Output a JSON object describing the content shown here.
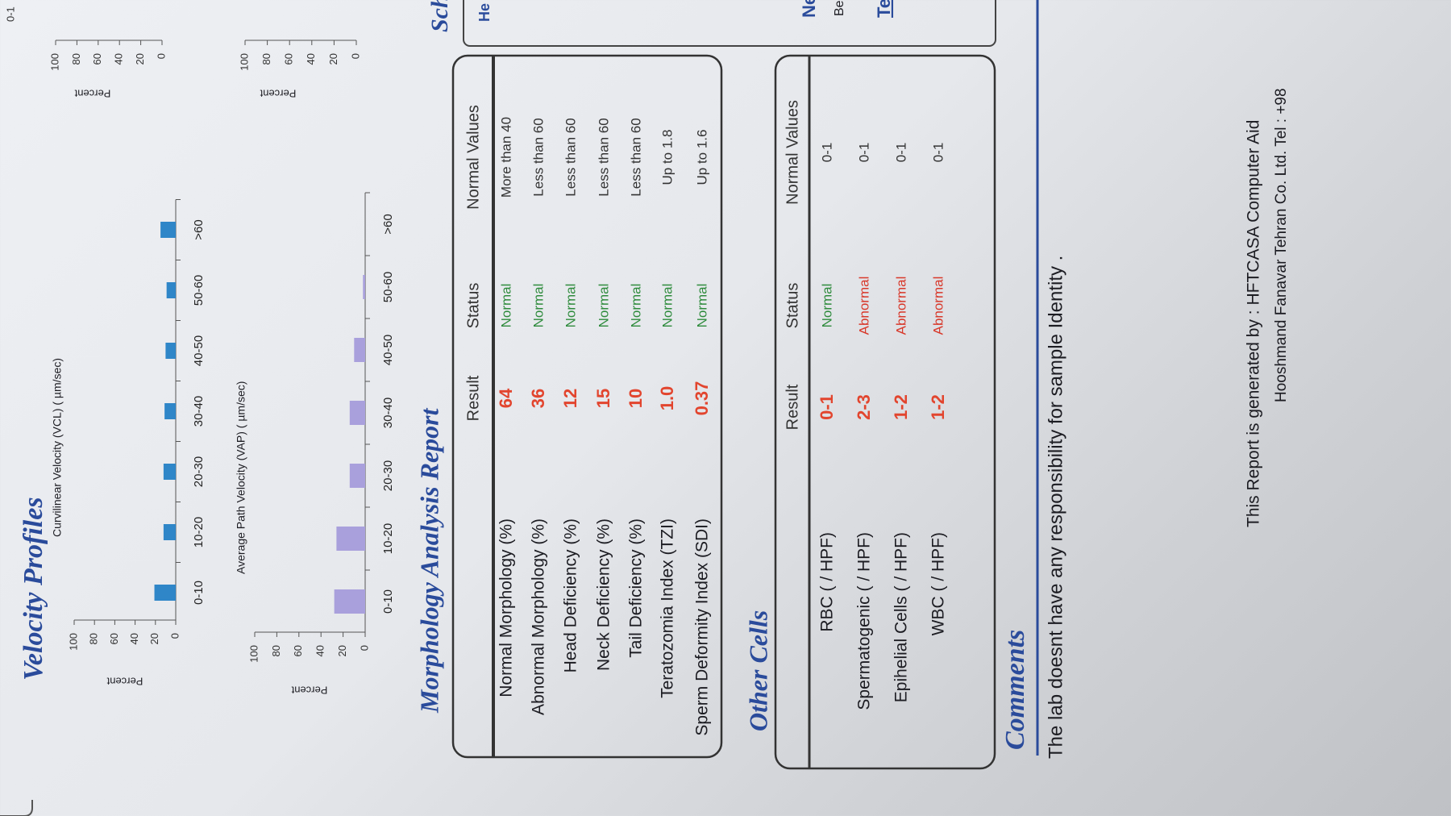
{
  "velocity_profiles": {
    "title": "Velocity Profiles",
    "charts": [
      {
        "subtitle": "Curvilinear Velocity (VCL) ( µm/sec)",
        "y_label": "Percent",
        "categories": [
          "0-10",
          "10-20",
          "20-30",
          "30-40",
          "40-50",
          "50-60",
          ">60"
        ],
        "values": [
          21,
          12,
          12,
          11,
          10,
          9,
          15
        ],
        "color": "#2f86c8",
        "ylim": [
          0,
          100
        ],
        "yticks": [
          0,
          20,
          40,
          60,
          80,
          100
        ]
      },
      {
        "subtitle": "Average Path Velocity (VAP) ( µm/sec)",
        "y_label": "Percent",
        "categories": [
          "0-10",
          "10-20",
          "20-30",
          "30-40",
          "40-50",
          "50-60",
          ">60"
        ],
        "values": [
          28,
          26,
          14,
          14,
          10,
          2,
          0
        ],
        "color": "#a9a0dc",
        "ylim": [
          0,
          100
        ],
        "yticks": [
          0,
          20,
          40,
          60,
          80,
          100
        ]
      }
    ]
  },
  "morphology": {
    "title": "Morphology Analysis Report",
    "columns": [
      "Result",
      "Status",
      "Normal Values"
    ],
    "rows": [
      [
        "Normal Morphology (%)",
        "64",
        "Normal",
        "More than 40"
      ],
      [
        "Abnormal Morphology (%)",
        "36",
        "Normal",
        "Less than 60"
      ],
      [
        "Head Deficiency (%)",
        "12",
        "Normal",
        "Less than 60"
      ],
      [
        "Neck Deficiency (%)",
        "15",
        "Normal",
        "Less than 60"
      ],
      [
        "Tail Deficiency (%)",
        "10",
        "Normal",
        "Less than 60"
      ],
      [
        "Teratozomia Index (TZI)",
        "1.0",
        "Normal",
        "Up to 1.8"
      ],
      [
        "Sperm Deformity Index (SDI)",
        "0.37",
        "Normal",
        "Up to 1.6"
      ]
    ]
  },
  "other_cells": {
    "title": "Other Cells",
    "columns": [
      "Result",
      "Status",
      "Normal Values"
    ],
    "rows": [
      [
        "RBC ( / HPF)",
        "0-1",
        "Normal",
        "0-1"
      ],
      [
        "Spermatogenic  ( / HPF)",
        "2-3",
        "Abnormal",
        "0-1"
      ],
      [
        "Epihelial Cells ( / HPF)",
        "1-2",
        "Abnormal",
        "0-1"
      ],
      [
        "WBC ( / HPF)",
        "1-2",
        "Abnormal",
        "0-1"
      ]
    ]
  },
  "comments": {
    "title": "Comments",
    "text": "The lab doesnt have any responsibility for sample Identity ."
  },
  "footer": {
    "line1": "This Report is generated by : HFTCASA Computer Aid",
    "line2": "Hooshmand Fanavar Tehran Co. Ltd.    Tel : +98"
  },
  "right_edge": {
    "heading": "Sch",
    "tab": "He",
    "labels": [
      "Ne",
      "Be",
      "Te"
    ],
    "category": "0-1",
    "axes": [
      {
        "y_label": "Percent",
        "yticks": [
          0,
          20,
          40,
          60,
          80,
          100
        ]
      },
      {
        "y_label": "Percent",
        "yticks": [
          0,
          20,
          40,
          60,
          80,
          100
        ]
      }
    ]
  }
}
